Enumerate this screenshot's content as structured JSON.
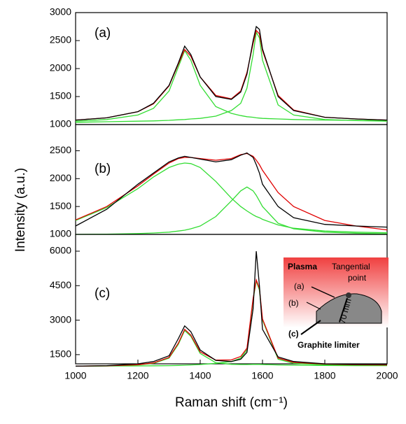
{
  "chart_data": [
    {
      "type": "line",
      "label": "(a)",
      "x": [
        1000,
        1100,
        1200,
        1250,
        1300,
        1330,
        1350,
        1370,
        1400,
        1450,
        1500,
        1530,
        1550,
        1570,
        1580,
        1590,
        1600,
        1650,
        1700,
        1800,
        1900,
        2000
      ],
      "xlim": [
        1000,
        2000
      ],
      "ylim": [
        1000,
        3000
      ],
      "yticks": [
        1000,
        1500,
        2000,
        2500,
        3000
      ],
      "series": [
        {
          "color": "#000000",
          "values": [
            1080,
            1120,
            1230,
            1380,
            1700,
            2100,
            2400,
            2250,
            1850,
            1500,
            1450,
            1580,
            1900,
            2500,
            2750,
            2700,
            2350,
            1500,
            1250,
            1130,
            1100,
            1080
          ]
        },
        {
          "color": "#e00000",
          "values": [
            1080,
            1120,
            1230,
            1370,
            1690,
            2080,
            2340,
            2220,
            1850,
            1520,
            1460,
            1600,
            1930,
            2450,
            2680,
            2620,
            2320,
            1520,
            1260,
            1130,
            1100,
            1080
          ]
        },
        {
          "color": "#33dd33",
          "values": [
            1060,
            1090,
            1170,
            1290,
            1600,
            2030,
            2320,
            2150,
            1700,
            1320,
            1200,
            1160,
            1140,
            1130,
            1120,
            1115,
            1110,
            1100,
            1090,
            1080,
            1075,
            1070
          ]
        },
        {
          "color": "#33dd33",
          "values": [
            1040,
            1050,
            1060,
            1065,
            1075,
            1085,
            1090,
            1100,
            1110,
            1150,
            1250,
            1380,
            1650,
            2250,
            2650,
            2550,
            2150,
            1350,
            1170,
            1090,
            1070,
            1060
          ]
        }
      ]
    },
    {
      "type": "line",
      "label": "(b)",
      "ylabel": "Intensity (a.u.)",
      "x": [
        1000,
        1100,
        1200,
        1250,
        1300,
        1330,
        1350,
        1370,
        1400,
        1450,
        1500,
        1530,
        1550,
        1570,
        1580,
        1590,
        1600,
        1650,
        1700,
        1800,
        1900,
        2000
      ],
      "xlim": [
        1000,
        2000
      ],
      "ylim": [
        1000,
        2970
      ],
      "yticks": [
        1000,
        1500,
        2000,
        2500
      ],
      "series": [
        {
          "color": "#000000",
          "values": [
            1150,
            1450,
            1900,
            2100,
            2300,
            2370,
            2400,
            2380,
            2350,
            2300,
            2340,
            2420,
            2460,
            2380,
            2250,
            2100,
            1900,
            1500,
            1300,
            1180,
            1150,
            1130
          ]
        },
        {
          "color": "#e00000",
          "values": [
            1260,
            1500,
            1870,
            2080,
            2280,
            2360,
            2380,
            2380,
            2360,
            2330,
            2360,
            2430,
            2450,
            2400,
            2330,
            2250,
            2150,
            1750,
            1500,
            1250,
            1150,
            1080
          ]
        },
        {
          "color": "#33dd33",
          "values": [
            1250,
            1480,
            1820,
            2030,
            2200,
            2260,
            2280,
            2270,
            2200,
            1950,
            1650,
            1500,
            1420,
            1350,
            1320,
            1300,
            1270,
            1170,
            1110,
            1060,
            1040,
            1030
          ]
        },
        {
          "color": "#33dd33",
          "values": [
            1000,
            1005,
            1015,
            1025,
            1040,
            1060,
            1075,
            1100,
            1150,
            1320,
            1600,
            1780,
            1850,
            1780,
            1700,
            1600,
            1500,
            1200,
            1100,
            1040,
            1020,
            1010
          ]
        }
      ]
    },
    {
      "type": "line",
      "label": "(c)",
      "xlabel": "Raman shift (cm⁻¹)",
      "x": [
        1000,
        1100,
        1200,
        1250,
        1300,
        1330,
        1350,
        1370,
        1400,
        1450,
        1500,
        1530,
        1550,
        1570,
        1580,
        1590,
        1600,
        1650,
        1700,
        1800,
        1900,
        2000
      ],
      "xlim": [
        1000,
        2000
      ],
      "xticks": [
        1000,
        1200,
        1400,
        1600,
        1800,
        2000
      ],
      "ylim": [
        1100,
        6730
      ],
      "yticks": [
        1500,
        3000,
        4500,
        6000
      ],
      "series": [
        {
          "color": "#000000",
          "values": [
            1000,
            1020,
            1100,
            1200,
            1450,
            2200,
            2750,
            2500,
            1700,
            1250,
            1200,
            1300,
            1600,
            3500,
            6000,
            4500,
            2600,
            1400,
            1200,
            1100,
            1080,
            1080
          ]
        },
        {
          "color": "#e00000",
          "values": [
            1000,
            1015,
            1060,
            1140,
            1380,
            2000,
            2600,
            2350,
            1620,
            1260,
            1270,
            1420,
            1780,
            3950,
            4750,
            4380,
            3050,
            1350,
            1160,
            1090,
            1060,
            1050
          ]
        },
        {
          "color": "#33dd33",
          "values": [
            1000,
            1010,
            1050,
            1120,
            1350,
            1950,
            2550,
            2300,
            1550,
            1150,
            1080,
            1070,
            1070,
            1075,
            1075,
            1075,
            1070,
            1050,
            1040,
            1030,
            1020,
            1020
          ]
        },
        {
          "color": "#33dd33",
          "values": [
            1000,
            1005,
            1010,
            1015,
            1020,
            1030,
            1040,
            1050,
            1070,
            1120,
            1200,
            1350,
            1700,
            3900,
            4700,
            4300,
            3000,
            1300,
            1120,
            1060,
            1040,
            1030
          ]
        }
      ]
    }
  ],
  "inset": {
    "plasma": "Plasma",
    "tangential": "Tangential",
    "point": "point",
    "a": "(a)",
    "b": "(b)",
    "c": "(c)",
    "distance": "70 mm",
    "limiter": "Graphite limiter"
  }
}
